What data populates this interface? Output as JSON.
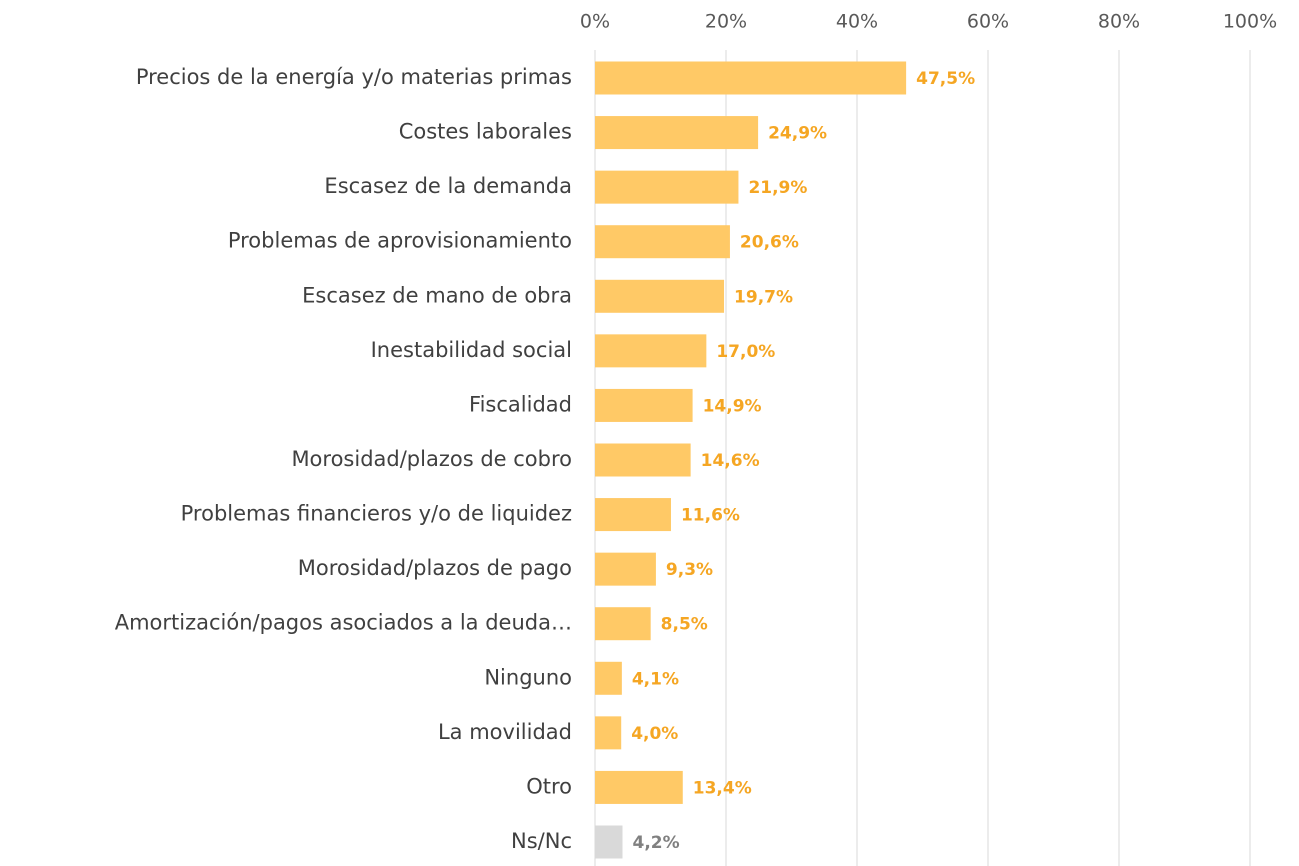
{
  "chart_data": {
    "type": "bar",
    "orientation": "horizontal",
    "categories": [
      "Precios de la energía y/o materias primas",
      "Costes laborales",
      "Escasez de la demanda",
      "Problemas de aprovisionamiento",
      "Escasez de mano de obra",
      "Inestabilidad social",
      "Fiscalidad",
      "Morosidad/plazos de cobro",
      "Problemas financieros y/o de liquidez",
      "Morosidad/plazos de pago",
      "Amortización/pagos asociados a la deuda…",
      "Ninguno",
      "La movilidad",
      "Otro",
      "Ns/Nc"
    ],
    "values": [
      47.5,
      24.9,
      21.9,
      20.6,
      19.7,
      17.0,
      14.9,
      14.6,
      11.6,
      9.3,
      8.5,
      4.1,
      4.0,
      13.4,
      4.2
    ],
    "value_labels": [
      "47,5%",
      "24,9%",
      "21,9%",
      "20,6%",
      "19,7%",
      "17,0%",
      "14,9%",
      "14,6%",
      "11,6%",
      "9,3%",
      "8,5%",
      "4,1%",
      "4,0%",
      "13,4%",
      "4,2%"
    ],
    "colors": [
      "#FFC966",
      "#FFC966",
      "#FFC966",
      "#FFC966",
      "#FFC966",
      "#FFC966",
      "#FFC966",
      "#FFC966",
      "#FFC966",
      "#FFC966",
      "#FFC966",
      "#FFC966",
      "#FFC966",
      "#FFC966",
      "#D9D9D9"
    ],
    "label_colors": [
      "#F5A623",
      "#F5A623",
      "#F5A623",
      "#F5A623",
      "#F5A623",
      "#F5A623",
      "#F5A623",
      "#F5A623",
      "#F5A623",
      "#F5A623",
      "#F5A623",
      "#F5A623",
      "#F5A623",
      "#F5A623",
      "#808080"
    ],
    "xlim": [
      0,
      100
    ],
    "xticks": [
      {
        "value": 0,
        "label": "0%"
      },
      {
        "value": 20,
        "label": "20%"
      },
      {
        "value": 40,
        "label": "40%"
      },
      {
        "value": 60,
        "label": "60%"
      },
      {
        "value": 80,
        "label": "80%"
      },
      {
        "value": 100,
        "label": "100%"
      }
    ],
    "grid": true
  }
}
